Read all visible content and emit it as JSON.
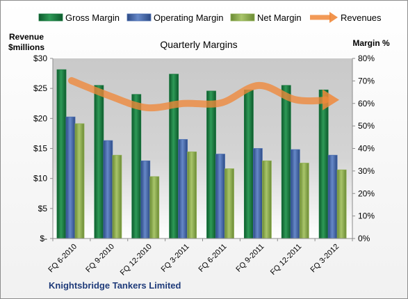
{
  "chart_data": {
    "type": "bar",
    "title": "Quarterly Margins",
    "company": "Knightsbridge Tankers Limited",
    "left_axis_title": [
      "Revenue",
      "$millions"
    ],
    "right_axis_title": "Margin %",
    "categories": [
      "FQ 6-2010",
      "FQ 9-2010",
      "FQ 12-2010",
      "FQ 3-2011",
      "FQ 6-2011",
      "FQ 9-2011",
      "FQ 12-2011",
      "FQ 3-2012"
    ],
    "left_ticks": [
      "$-",
      "$5",
      "$10",
      "$15",
      "$20",
      "$25",
      "$30"
    ],
    "right_ticks": [
      "0%",
      "10%",
      "20%",
      "30%",
      "40%",
      "50%",
      "60%",
      "70%",
      "80%"
    ],
    "left_ylim": [
      0,
      30
    ],
    "right_ylim": [
      0,
      80
    ],
    "grid": false,
    "legend_position": "top",
    "series": [
      {
        "name": "Gross Margin",
        "type": "bar",
        "axis": "right",
        "color": "#1a7a40",
        "values": [
          75,
          68,
          64,
          73,
          65.5,
          66,
          68,
          66
        ]
      },
      {
        "name": "Operating Margin",
        "type": "bar",
        "axis": "right",
        "color": "#4a6db0",
        "values": [
          54,
          43.5,
          34.5,
          44,
          37.5,
          40,
          39.5,
          37
        ]
      },
      {
        "name": "Net Margin",
        "type": "bar",
        "axis": "right",
        "color": "#8fae52",
        "values": [
          51,
          37,
          27.5,
          38.5,
          31,
          34.5,
          33.5,
          30.5
        ]
      },
      {
        "name": "Revenues",
        "type": "line",
        "axis": "left",
        "color": "#f0883a",
        "values": [
          26.3,
          23.8,
          21.8,
          22.5,
          22.6,
          25.5,
          23.1,
          23.1
        ]
      }
    ]
  }
}
